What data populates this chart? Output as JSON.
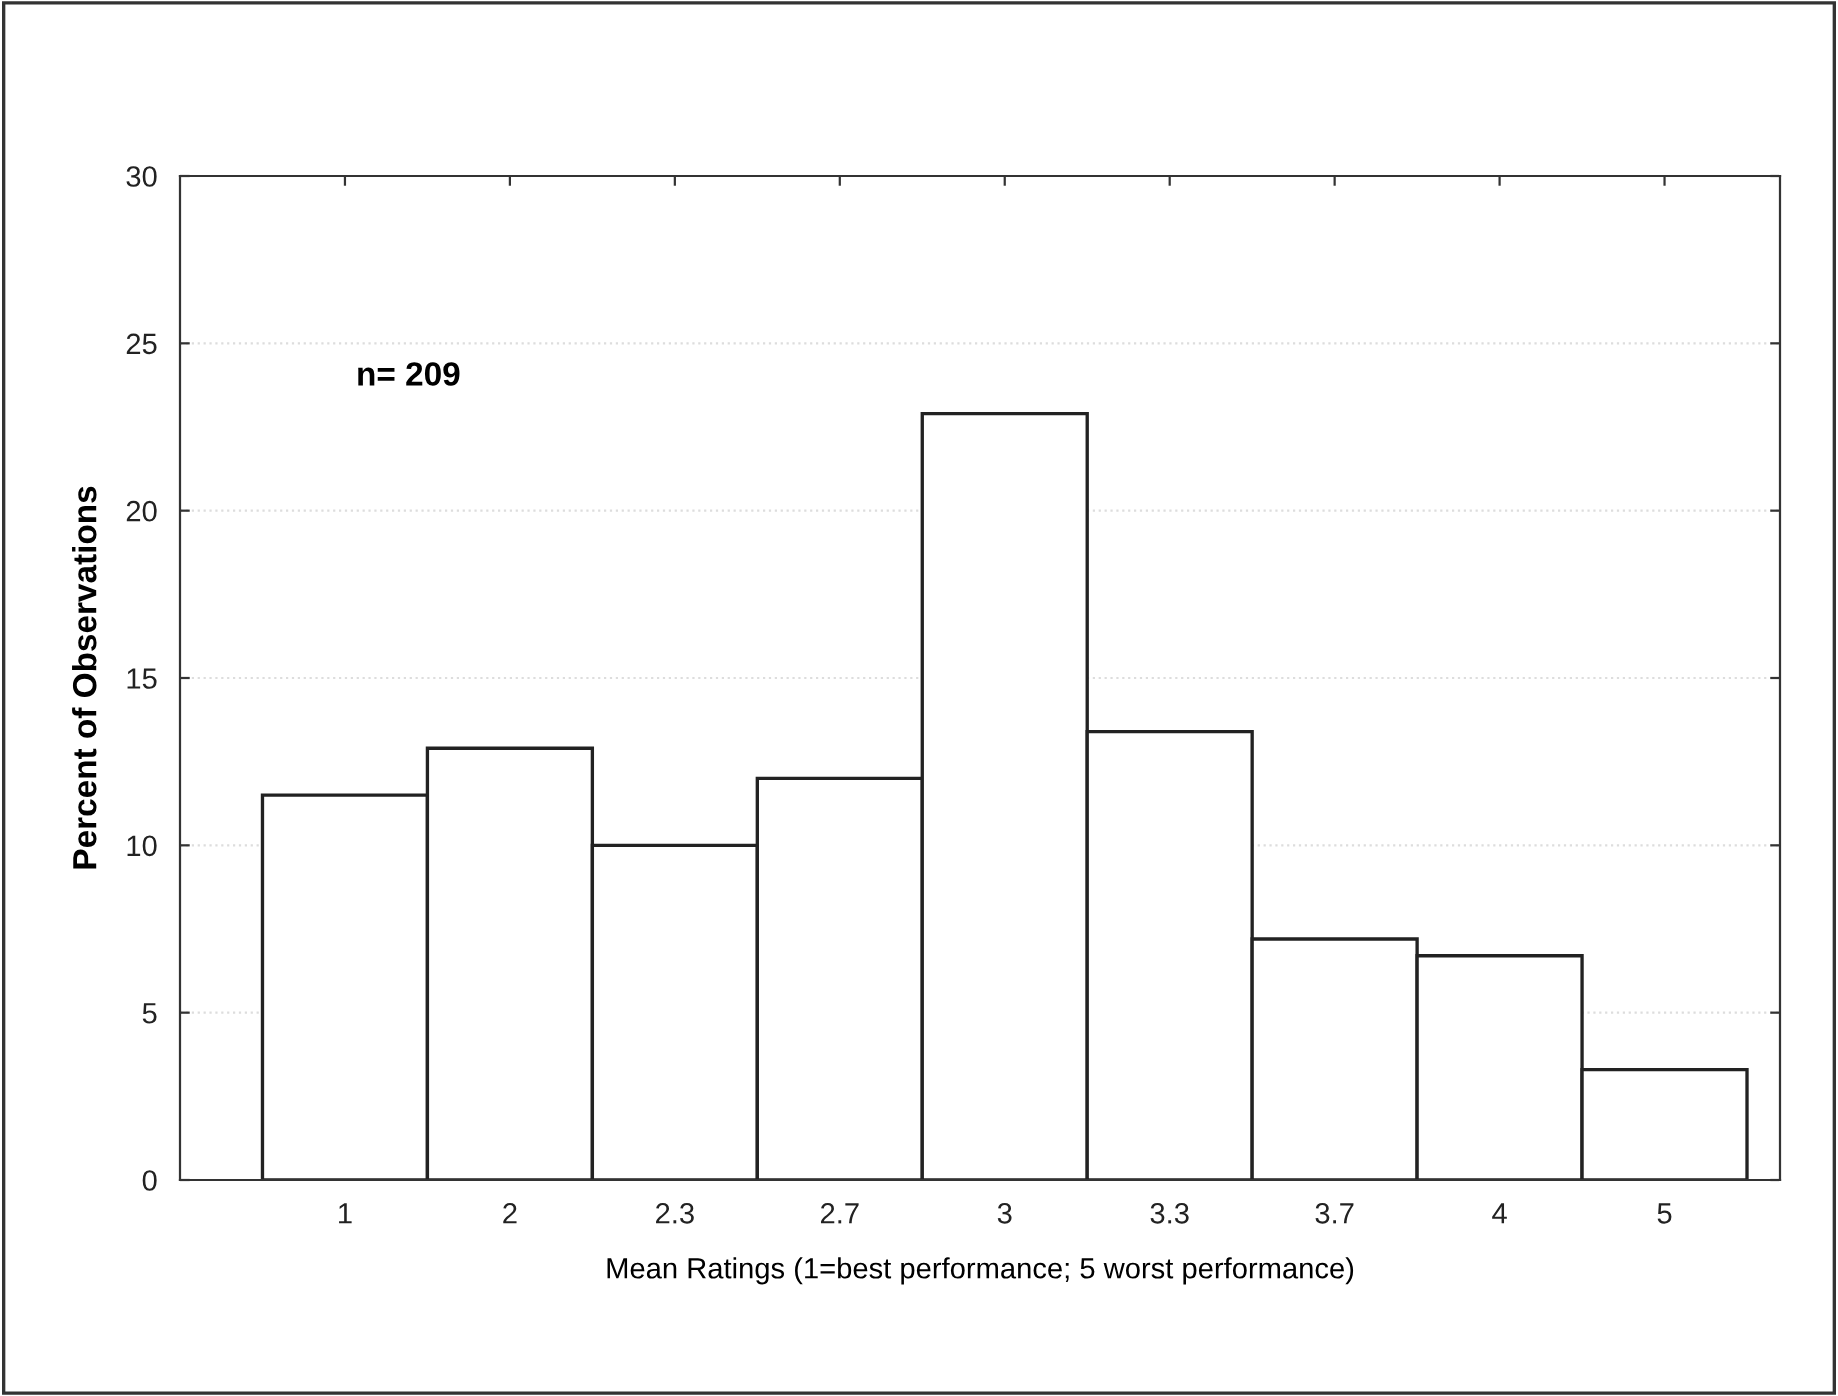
{
  "chart_data": {
    "type": "bar",
    "xlabel": "Mean Ratings (1=best performance; 5 worst performance)",
    "ylabel": "Percent of Observations",
    "categories": [
      "1",
      "2",
      "2.3",
      "2.7",
      "3",
      "3.3",
      "3.7",
      "4",
      "5"
    ],
    "values": [
      11.5,
      12.9,
      10.0,
      12.0,
      22.9,
      13.4,
      7.2,
      6.7,
      3.3
    ],
    "color": "#ffffff",
    "ylim": [
      0,
      30
    ],
    "yticks": [
      0,
      5,
      10,
      15,
      20,
      25,
      30
    ],
    "grid": "y",
    "annotations": [
      "n= 209"
    ]
  }
}
